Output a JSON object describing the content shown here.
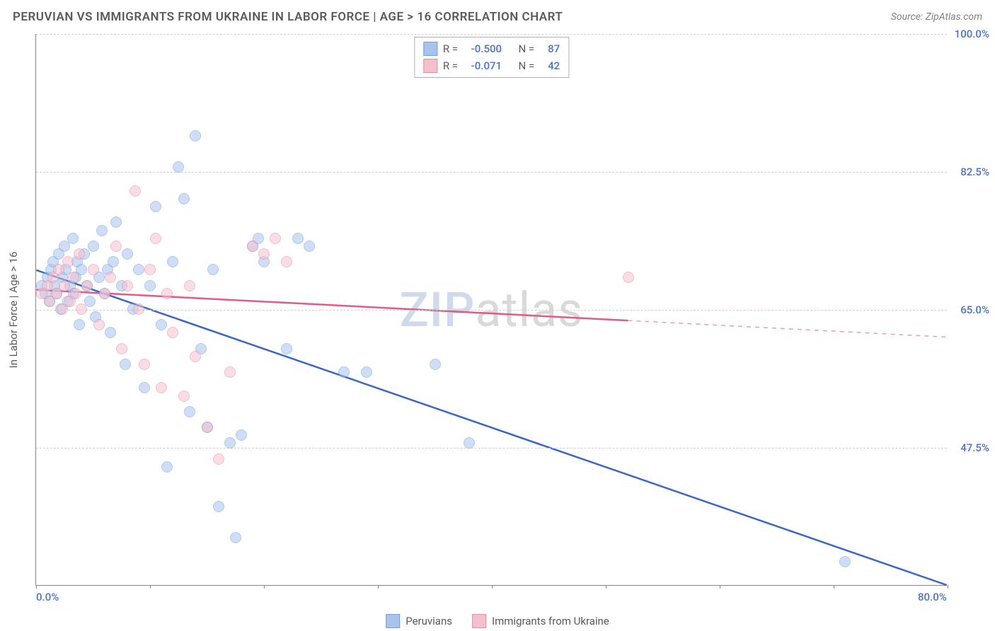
{
  "header": {
    "title": "PERUVIAN VS IMMIGRANTS FROM UKRAINE IN LABOR FORCE | AGE > 16 CORRELATION CHART",
    "source_prefix": "Source: ",
    "source_name": "ZipAtlas.com"
  },
  "watermark": {
    "part1": "ZIP",
    "part2": "atlas"
  },
  "chart": {
    "type": "scatter",
    "background_color": "#ffffff",
    "grid_color": "#d0d0d0",
    "axis_color": "#888888",
    "tick_label_color": "#4a74c9",
    "axis_label_color": "#5a5a5a",
    "xlim": [
      0,
      80
    ],
    "ylim": [
      30,
      100
    ],
    "y_gridlines": [
      47.5,
      65.0,
      82.5,
      100.0
    ],
    "y_tick_labels": [
      "47.5%",
      "65.0%",
      "82.5%",
      "100.0%"
    ],
    "x_ticks": [
      0,
      10,
      20,
      30,
      40,
      50,
      60,
      70,
      80
    ],
    "x_tick_labels": {
      "0": "0.0%",
      "80": "80.0%"
    },
    "y_axis_label": "In Labor Force | Age > 16",
    "point_radius": 8,
    "point_opacity": 0.55,
    "trend_line_width": 2.5,
    "series": [
      {
        "id": "peruvians",
        "label": "Peruvians",
        "color_fill": "#a9c4ec",
        "color_stroke": "#6f9fe0",
        "color_line": "#3a66c4",
        "R": "-0.500",
        "N": "87",
        "trend": {
          "x1": 0,
          "y1": 70,
          "x2": 80,
          "y2": 30,
          "solid_until_x": 80
        },
        "points": [
          [
            0.5,
            68
          ],
          [
            0.8,
            67
          ],
          [
            1,
            69
          ],
          [
            1.2,
            66
          ],
          [
            1.3,
            70
          ],
          [
            1.5,
            71
          ],
          [
            1.6,
            68
          ],
          [
            1.8,
            67
          ],
          [
            2,
            72
          ],
          [
            2.2,
            65
          ],
          [
            2.3,
            69
          ],
          [
            2.5,
            73
          ],
          [
            2.6,
            70
          ],
          [
            2.8,
            66
          ],
          [
            3,
            68
          ],
          [
            3.2,
            74
          ],
          [
            3.3,
            67
          ],
          [
            3.5,
            69
          ],
          [
            3.6,
            71
          ],
          [
            3.8,
            63
          ],
          [
            4,
            70
          ],
          [
            4.2,
            72
          ],
          [
            4.5,
            68
          ],
          [
            4.7,
            66
          ],
          [
            5,
            73
          ],
          [
            5.2,
            64
          ],
          [
            5.5,
            69
          ],
          [
            5.8,
            75
          ],
          [
            6,
            67
          ],
          [
            6.3,
            70
          ],
          [
            6.5,
            62
          ],
          [
            6.8,
            71
          ],
          [
            7,
            76
          ],
          [
            7.5,
            68
          ],
          [
            7.8,
            58
          ],
          [
            8,
            72
          ],
          [
            8.5,
            65
          ],
          [
            9,
            70
          ],
          [
            9.5,
            55
          ],
          [
            10,
            68
          ],
          [
            10.5,
            78
          ],
          [
            11,
            63
          ],
          [
            11.5,
            45
          ],
          [
            12,
            71
          ],
          [
            12.5,
            83
          ],
          [
            13,
            79
          ],
          [
            13.5,
            52
          ],
          [
            14,
            87
          ],
          [
            14.5,
            60
          ],
          [
            15,
            50
          ],
          [
            15.5,
            70
          ],
          [
            16,
            40
          ],
          [
            17,
            48
          ],
          [
            17.5,
            36
          ],
          [
            18,
            49
          ],
          [
            19,
            73
          ],
          [
            19.5,
            74
          ],
          [
            20,
            71
          ],
          [
            22,
            60
          ],
          [
            23,
            74
          ],
          [
            24,
            73
          ],
          [
            27,
            57
          ],
          [
            29,
            57
          ],
          [
            35,
            58
          ],
          [
            38,
            48
          ],
          [
            71,
            33
          ]
        ]
      },
      {
        "id": "ukraine",
        "label": "Immigrants from Ukraine",
        "color_fill": "#f5c0ce",
        "color_stroke": "#e88aa3",
        "color_line": "#e05a8a",
        "R": "-0.071",
        "N": "42",
        "trend": {
          "x1": 0,
          "y1": 67.5,
          "x2": 80,
          "y2": 61.5,
          "solid_until_x": 52
        },
        "points": [
          [
            0.5,
            67
          ],
          [
            1,
            68
          ],
          [
            1.2,
            66
          ],
          [
            1.5,
            69
          ],
          [
            1.8,
            67
          ],
          [
            2,
            70
          ],
          [
            2.3,
            65
          ],
          [
            2.5,
            68
          ],
          [
            2.8,
            71
          ],
          [
            3,
            66
          ],
          [
            3.3,
            69
          ],
          [
            3.5,
            67
          ],
          [
            3.8,
            72
          ],
          [
            4,
            65
          ],
          [
            4.5,
            68
          ],
          [
            5,
            70
          ],
          [
            5.5,
            63
          ],
          [
            6,
            67
          ],
          [
            6.5,
            69
          ],
          [
            7,
            73
          ],
          [
            7.5,
            60
          ],
          [
            8,
            68
          ],
          [
            8.7,
            80
          ],
          [
            9,
            65
          ],
          [
            9.5,
            58
          ],
          [
            10,
            70
          ],
          [
            10.5,
            74
          ],
          [
            11,
            55
          ],
          [
            11.5,
            67
          ],
          [
            12,
            62
          ],
          [
            13,
            54
          ],
          [
            13.5,
            68
          ],
          [
            14,
            59
          ],
          [
            15,
            50
          ],
          [
            16,
            46
          ],
          [
            17,
            57
          ],
          [
            19,
            73
          ],
          [
            20,
            72
          ],
          [
            21,
            74
          ],
          [
            22,
            71
          ],
          [
            52,
            69
          ]
        ]
      }
    ]
  },
  "stats_box": {
    "r_label": "R =",
    "n_label": "N ="
  },
  "legend_bottom": {
    "items": [
      "peruvians",
      "ukraine"
    ]
  }
}
